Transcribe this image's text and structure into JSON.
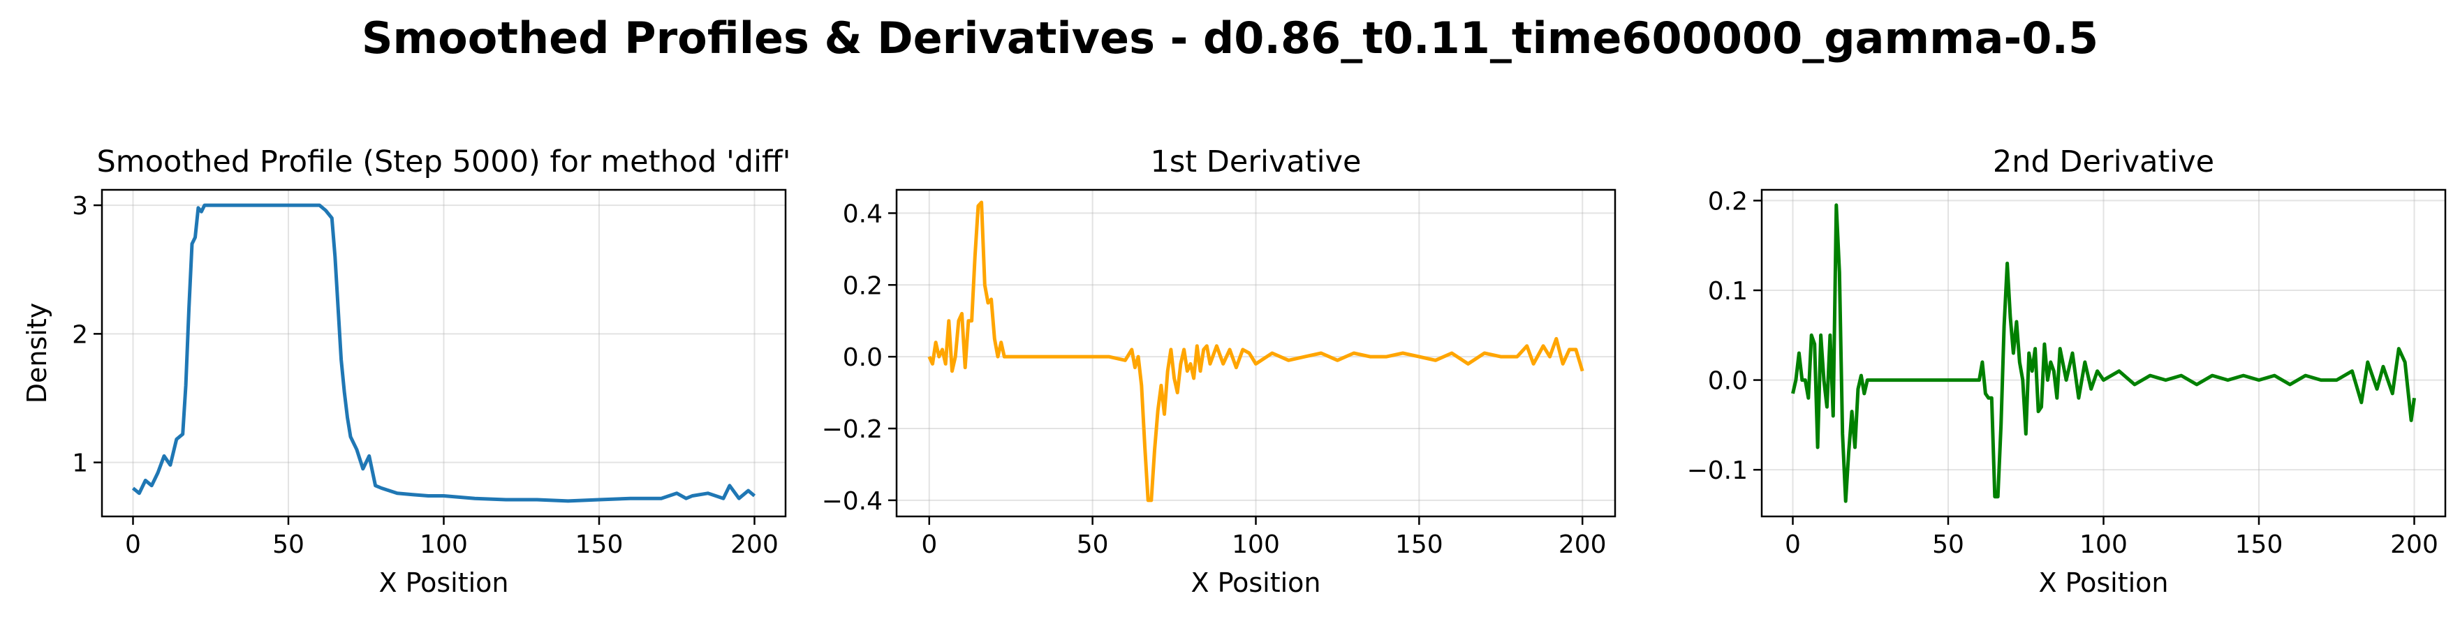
{
  "figure": {
    "title": "Smoothed Profiles & Derivatives - d0.86_t0.11_time600000_gamma-0.5"
  },
  "chart_data": [
    {
      "type": "line",
      "title": "Smoothed Profile (Step 5000) for method 'diff'",
      "xlabel": "X Position",
      "ylabel": "Density",
      "xlim": [
        -10,
        210
      ],
      "ylim": [
        0.58,
        3.12
      ],
      "xticks": [
        0,
        50,
        100,
        150,
        200
      ],
      "yticks": [
        1,
        2,
        3
      ],
      "xtick_labels": [
        "0",
        "50",
        "100",
        "150",
        "200"
      ],
      "ytick_labels": [
        "1",
        "2",
        "3"
      ],
      "grid": true,
      "color": "#1f77b4",
      "series": [
        {
          "x": [
            0,
            2,
            4,
            6,
            8,
            10,
            12,
            14,
            16,
            17,
            18,
            19,
            20,
            21,
            22,
            23,
            24,
            26,
            30,
            35,
            40,
            45,
            50,
            55,
            58,
            60,
            62,
            64,
            65,
            66,
            67,
            68,
            69,
            70,
            72,
            74,
            76,
            78,
            80,
            85,
            90,
            95,
            100,
            110,
            120,
            130,
            140,
            150,
            160,
            170,
            175,
            178,
            180,
            185,
            190,
            192,
            195,
            198,
            200
          ],
          "y": [
            0.8,
            0.76,
            0.86,
            0.82,
            0.92,
            1.05,
            0.98,
            1.18,
            1.22,
            1.6,
            2.2,
            2.7,
            2.75,
            2.98,
            2.95,
            3.0,
            3.0,
            3.0,
            3.0,
            3.0,
            3.0,
            3.0,
            3.0,
            3.0,
            3.0,
            3.0,
            2.96,
            2.9,
            2.6,
            2.2,
            1.8,
            1.55,
            1.35,
            1.2,
            1.1,
            0.95,
            1.05,
            0.82,
            0.8,
            0.76,
            0.75,
            0.74,
            0.74,
            0.72,
            0.71,
            0.71,
            0.7,
            0.71,
            0.72,
            0.72,
            0.76,
            0.72,
            0.74,
            0.76,
            0.72,
            0.82,
            0.72,
            0.78,
            0.74
          ]
        }
      ]
    },
    {
      "type": "line",
      "title": "1st Derivative",
      "xlabel": "X Position",
      "ylabel": "",
      "xlim": [
        -10,
        210
      ],
      "ylim": [
        -0.445,
        0.465
      ],
      "xticks": [
        0,
        50,
        100,
        150,
        200
      ],
      "yticks": [
        -0.4,
        -0.2,
        0.0,
        0.2,
        0.4
      ],
      "xtick_labels": [
        "0",
        "50",
        "100",
        "150",
        "200"
      ],
      "ytick_labels": [
        "−0.4",
        "−0.2",
        "0.0",
        "0.2",
        "0.4"
      ],
      "grid": true,
      "color": "#ffa500",
      "series": [
        {
          "x": [
            0,
            1,
            2,
            3,
            4,
            5,
            6,
            7,
            8,
            9,
            10,
            11,
            12,
            13,
            14,
            15,
            16,
            17,
            18,
            19,
            20,
            21,
            22,
            23,
            25,
            30,
            35,
            40,
            45,
            50,
            55,
            60,
            62,
            63,
            64,
            65,
            66,
            67,
            68,
            69,
            70,
            71,
            72,
            73,
            74,
            75,
            76,
            77,
            78,
            79,
            80,
            81,
            82,
            83,
            84,
            85,
            86,
            88,
            90,
            92,
            94,
            96,
            98,
            100,
            105,
            110,
            115,
            120,
            125,
            130,
            135,
            140,
            145,
            150,
            155,
            160,
            165,
            170,
            175,
            180,
            183,
            185,
            188,
            190,
            192,
            194,
            196,
            198,
            200
          ],
          "y": [
            0.0,
            -0.02,
            0.04,
            0.0,
            0.02,
            -0.02,
            0.1,
            -0.04,
            0.0,
            0.1,
            0.12,
            -0.03,
            0.1,
            0.1,
            0.28,
            0.42,
            0.43,
            0.2,
            0.15,
            0.16,
            0.05,
            0.0,
            0.04,
            0.0,
            0.0,
            0.0,
            0.0,
            0.0,
            0.0,
            0.0,
            0.0,
            -0.01,
            0.02,
            -0.03,
            0.0,
            -0.08,
            -0.25,
            -0.4,
            -0.4,
            -0.26,
            -0.15,
            -0.08,
            -0.16,
            -0.04,
            0.02,
            -0.06,
            -0.1,
            -0.02,
            0.02,
            -0.04,
            -0.02,
            -0.06,
            0.03,
            -0.04,
            0.02,
            0.03,
            -0.02,
            0.03,
            -0.02,
            0.02,
            -0.03,
            0.02,
            0.01,
            -0.02,
            0.01,
            -0.01,
            0.0,
            0.01,
            -0.01,
            0.01,
            0.0,
            0.0,
            0.01,
            0.0,
            -0.01,
            0.01,
            -0.02,
            0.01,
            0.0,
            0.0,
            0.03,
            -0.02,
            0.03,
            0.0,
            0.05,
            -0.02,
            0.02,
            0.02,
            -0.04
          ]
        }
      ]
    },
    {
      "type": "line",
      "title": "2nd Derivative",
      "xlabel": "X Position",
      "ylabel": "",
      "xlim": [
        -10,
        210
      ],
      "ylim": [
        -0.152,
        0.212
      ],
      "xticks": [
        0,
        50,
        100,
        150,
        200
      ],
      "yticks": [
        -0.1,
        0.0,
        0.1,
        0.2
      ],
      "xtick_labels": [
        "0",
        "50",
        "100",
        "150",
        "200"
      ],
      "ytick_labels": [
        "−0.1",
        "0.0",
        "0.1",
        "0.2"
      ],
      "grid": true,
      "color": "#008000",
      "series": [
        {
          "x": [
            0,
            1,
            2,
            3,
            4,
            5,
            6,
            7,
            8,
            9,
            10,
            11,
            12,
            13,
            14,
            15,
            16,
            17,
            18,
            19,
            20,
            21,
            22,
            23,
            24,
            25,
            30,
            35,
            40,
            45,
            50,
            55,
            58,
            60,
            61,
            62,
            63,
            64,
            65,
            66,
            67,
            68,
            69,
            70,
            71,
            72,
            73,
            74,
            75,
            76,
            77,
            78,
            79,
            80,
            81,
            82,
            83,
            84,
            85,
            86,
            88,
            90,
            92,
            94,
            96,
            98,
            100,
            105,
            110,
            115,
            120,
            125,
            130,
            135,
            140,
            145,
            150,
            155,
            160,
            165,
            170,
            175,
            180,
            183,
            185,
            188,
            190,
            193,
            195,
            197,
            199,
            200
          ],
          "y": [
            -0.015,
            0.0,
            0.03,
            0.0,
            0.0,
            -0.02,
            0.05,
            0.04,
            -0.075,
            0.05,
            0.0,
            -0.03,
            0.05,
            -0.04,
            0.195,
            0.12,
            -0.06,
            -0.135,
            -0.08,
            -0.035,
            -0.075,
            -0.01,
            0.005,
            -0.015,
            0.0,
            0.0,
            0.0,
            0.0,
            0.0,
            0.0,
            0.0,
            0.0,
            0.0,
            0.0,
            0.02,
            -0.015,
            -0.02,
            -0.02,
            -0.13,
            -0.13,
            -0.05,
            0.06,
            0.13,
            0.07,
            0.03,
            0.065,
            0.02,
            0.0,
            -0.06,
            0.03,
            0.01,
            0.035,
            -0.035,
            -0.03,
            0.04,
            0.0,
            0.02,
            0.01,
            -0.02,
            0.035,
            0.0,
            0.03,
            -0.02,
            0.02,
            -0.01,
            0.01,
            0.0,
            0.01,
            -0.005,
            0.005,
            0.0,
            0.005,
            -0.005,
            0.005,
            0.0,
            0.005,
            0.0,
            0.005,
            -0.005,
            0.005,
            0.0,
            0.0,
            0.01,
            -0.025,
            0.02,
            -0.01,
            0.015,
            -0.015,
            0.035,
            0.02,
            -0.045,
            -0.02
          ]
        }
      ]
    }
  ]
}
